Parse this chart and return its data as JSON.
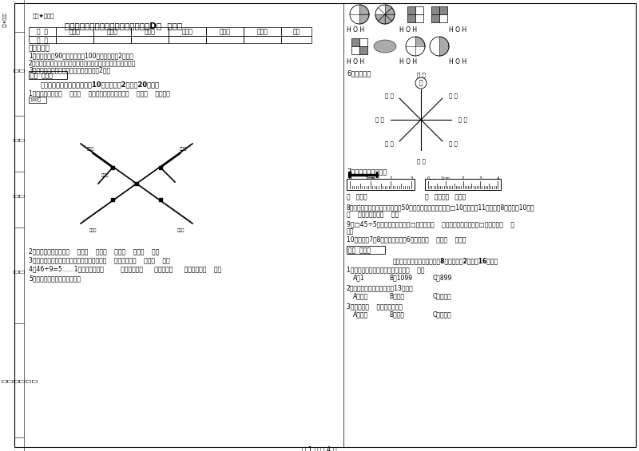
{
  "title": "浙教版三年级数学下学期每周一练试卷D卷  附解析",
  "watermark": "密密★自用圈",
  "table_headers": [
    "题  号",
    "填空题",
    "选择题",
    "判断题",
    "计算题",
    "综合题",
    "应用题",
    "总分"
  ],
  "table_row0": "得  分",
  "section1_title": "考试须知：",
  "notices": [
    "1、考试时间：90分钟，满分为100分（含卷面分2分）。",
    "2、请首先按要求在试卷的指定位置填写您的姓名、班级、学号。",
    "3、不要在试卷上乱写乱画，卷面不整洁扣2分。"
  ],
  "score_label": "得分  评卷人",
  "part1_title": "一、用心思考，正确填空（共10小题，每题2分，共20分）。",
  "q1": "1、小红家在学校（    ）方（    ）米处；小明家在学校（    ）方（    ）米处。",
  "q2": "2、常用的长度单位有（    ）、（    ）、（    ）、（    ）、（    ）。",
  "q3": "3、在进位加法中，不管哪一位上的数相加满（    ），都要向（    ）进（    ）。",
  "q4": "4、46÷9=5……1中，被除数是（         ），除数是（      ），商是（      ），余数是（    ）。",
  "q5": "5、看图写分数，并比较大小。",
  "q6_title": "6、填一填。",
  "q7_title": "7、量出钉子的长度。",
  "q8": "8、体育老师对第一小组同学进行50米超测跑测试，成绩如下□10秒，小涵11秒，小明8秒，小平10秒，",
  "q8b": "（    ）跑得最快，（    ）。",
  "q9": "9、□45÷5，要使商是两位数，□里最大填（    ），要使商是三位数，□里最小填（    ）",
  "q9b": "）。",
  "q10": "10、时针在7和8之间，分针指向6，这时是（    ）时（    ）分。",
  "score_label2": "得分  评卷人",
  "part2_title": "二、反复比较，慎重选择（共8小题，每题2分，共16分）。",
  "mc1": "1、最小三位数和最大三位数的差是（    ）。",
  "mc1a": "A、1",
  "mc1b": "B、1099",
  "mc1c": "C、899",
  "mc2": "2、按农历计算，有的月份有13个月。",
  "mc2a": "A、一定",
  "mc2b": "B、可能",
  "mc2c": "C、不可能",
  "mc3": "3、四边形（    ）平行四边形。",
  "mc3a": "A、一定",
  "mc3b": "B、可能",
  "mc3c": "C、不可能",
  "page_footer": "第 1 页 共 4 页",
  "bg_color": "#ffffff"
}
